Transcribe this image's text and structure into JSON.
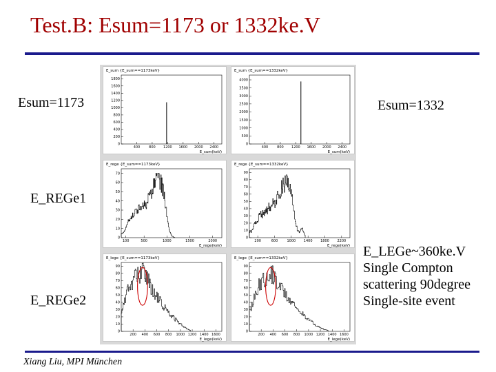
{
  "slide": {
    "title": "Test.B: Esum=1173 or 1332ke.V",
    "footer": "Xiang Liu, MPI München",
    "labels": {
      "esum_1173": "Esum=1173",
      "esum_1332": "Esum=1332",
      "e_rege1": "E_REGe1",
      "e_rege2": "E_REGe2",
      "note_lines": [
        "E_LEGe~360ke.V",
        "Single Compton",
        "scattering 90degree",
        "Single-site event"
      ]
    },
    "colors": {
      "title": "#a00000",
      "rule": "#1a1a8c",
      "highlight_ellipse": "#cc0000"
    }
  },
  "chart_data": [
    {
      "type": "bar",
      "title": "E_sum {E_sum==1173keV}",
      "xlabel": "E_sum(keV)",
      "xticks": [
        "400",
        "800",
        "1200",
        "1600",
        "2000",
        "2400"
      ],
      "yticks": [
        "0",
        "200",
        "400",
        "600",
        "800",
        "1000",
        "1200",
        "1400",
        "1600",
        "1800"
      ],
      "xlim": [
        0,
        2600
      ],
      "ylim": [
        0,
        1900
      ],
      "values": [
        [
          1173,
          1150
        ]
      ]
    },
    {
      "type": "bar",
      "title": "E_sum {E_sum==1332keV}",
      "xlabel": "E_sum(keV)",
      "xticks": [
        "400",
        "800",
        "1200",
        "1600",
        "2000",
        "2400"
      ],
      "yticks": [
        "0",
        "500",
        "1000",
        "1500",
        "2000",
        "2500",
        "3000",
        "3500",
        "4000"
      ],
      "xlim": [
        0,
        2600
      ],
      "ylim": [
        0,
        4300
      ],
      "values": [
        [
          1332,
          3900
        ]
      ]
    },
    {
      "type": "line",
      "title": "E_rege {E_sum==1173keV}",
      "xlabel": "E_rege(keV)",
      "xticks": [
        "100",
        "500",
        "1000",
        "1500",
        "2000"
      ],
      "yticks": [
        "0",
        "10",
        "20",
        "30",
        "40",
        "50",
        "60",
        "70"
      ],
      "xlim": [
        0,
        2200
      ],
      "ylim": [
        0,
        75
      ],
      "x": [
        50,
        150,
        250,
        350,
        450,
        550,
        650,
        700,
        750,
        800,
        850,
        900,
        950,
        1000,
        1050,
        1100,
        1173
      ],
      "y": [
        5,
        18,
        25,
        30,
        34,
        38,
        46,
        56,
        63,
        68,
        62,
        55,
        45,
        22,
        8,
        2,
        0
      ]
    },
    {
      "type": "line",
      "title": "E_rege {E_sum==1332keV}",
      "xlabel": "E_rege(keV)",
      "xticks": [
        "200",
        "600",
        "1000",
        "1400",
        "1800",
        "2200"
      ],
      "yticks": [
        "0",
        "10",
        "20",
        "30",
        "40",
        "50",
        "60",
        "70",
        "80",
        "90"
      ],
      "xlim": [
        0,
        2400
      ],
      "ylim": [
        0,
        95
      ],
      "x": [
        50,
        150,
        250,
        350,
        450,
        550,
        650,
        700,
        750,
        800,
        850,
        900,
        950,
        1000,
        1050,
        1100,
        1150,
        1200,
        1250,
        1332
      ],
      "y": [
        8,
        22,
        30,
        35,
        40,
        45,
        52,
        60,
        66,
        72,
        76,
        82,
        72,
        60,
        40,
        22,
        10,
        8,
        14,
        2
      ]
    },
    {
      "type": "line",
      "title": "E_lege {E_sum==1173keV}",
      "xlabel": "E_lege(keV)",
      "xticks": [
        "200",
        "400",
        "600",
        "800",
        "1000",
        "1200",
        "1400",
        "1600"
      ],
      "yticks": [
        "0",
        "10",
        "20",
        "30",
        "40",
        "50",
        "60",
        "70",
        "80",
        "90"
      ],
      "xlim": [
        0,
        1700
      ],
      "ylim": [
        0,
        95
      ],
      "x": [
        20,
        100,
        200,
        300,
        340,
        380,
        420,
        500,
        600,
        700,
        800,
        900,
        1000,
        1100,
        1173
      ],
      "y": [
        30,
        55,
        70,
        78,
        84,
        82,
        75,
        62,
        48,
        36,
        25,
        18,
        10,
        4,
        1
      ]
    },
    {
      "type": "line",
      "title": "E_lege {E_sum==1332keV}",
      "xlabel": "E_lege(keV)",
      "xticks": [
        "200",
        "400",
        "600",
        "800",
        "1000",
        "1200",
        "1400",
        "1600"
      ],
      "yticks": [
        "0",
        "10",
        "20",
        "30",
        "40",
        "50",
        "60",
        "70",
        "80",
        "90"
      ],
      "xlim": [
        0,
        1700
      ],
      "ylim": [
        0,
        95
      ],
      "x": [
        20,
        100,
        200,
        300,
        340,
        380,
        420,
        500,
        600,
        700,
        800,
        900,
        1000,
        1100,
        1200,
        1332
      ],
      "y": [
        30,
        55,
        68,
        78,
        82,
        80,
        74,
        64,
        52,
        42,
        32,
        24,
        16,
        10,
        5,
        1
      ]
    }
  ]
}
